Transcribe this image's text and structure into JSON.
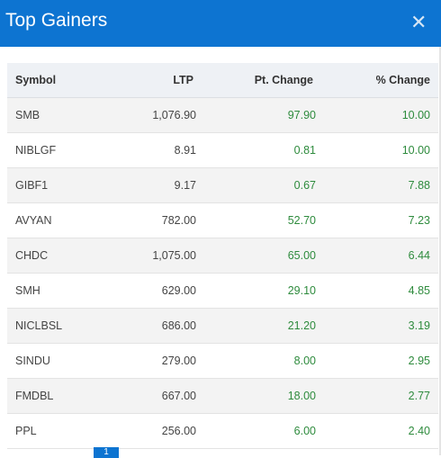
{
  "modal": {
    "title": "Top Gainers"
  },
  "columns": {
    "symbol": "Symbol",
    "ltp": "LTP",
    "pt_change": "Pt. Change",
    "pct_change": "% Change"
  },
  "rows": [
    {
      "symbol": "SMB",
      "ltp": "1,076.90",
      "pt_change": "97.90",
      "pct_change": "10.00"
    },
    {
      "symbol": "NIBLGF",
      "ltp": "8.91",
      "pt_change": "0.81",
      "pct_change": "10.00"
    },
    {
      "symbol": "GIBF1",
      "ltp": "9.17",
      "pt_change": "0.67",
      "pct_change": "7.88"
    },
    {
      "symbol": "AVYAN",
      "ltp": "782.00",
      "pt_change": "52.70",
      "pct_change": "7.23"
    },
    {
      "symbol": "CHDC",
      "ltp": "1,075.00",
      "pt_change": "65.00",
      "pct_change": "6.44"
    },
    {
      "symbol": "SMH",
      "ltp": "629.00",
      "pt_change": "29.10",
      "pct_change": "4.85"
    },
    {
      "symbol": "NICLBSL",
      "ltp": "686.00",
      "pt_change": "21.20",
      "pct_change": "3.19"
    },
    {
      "symbol": "SINDU",
      "ltp": "279.00",
      "pt_change": "8.00",
      "pct_change": "2.95"
    },
    {
      "symbol": "FMDBL",
      "ltp": "667.00",
      "pt_change": "18.00",
      "pct_change": "2.77"
    },
    {
      "symbol": "PPL",
      "ltp": "256.00",
      "pt_change": "6.00",
      "pct_change": "2.40"
    }
  ],
  "pagination": {
    "active_page": "1"
  },
  "colors": {
    "header": "#0d74d1",
    "gain": "#2e8b3d"
  },
  "icons": {
    "close": "close-icon"
  }
}
